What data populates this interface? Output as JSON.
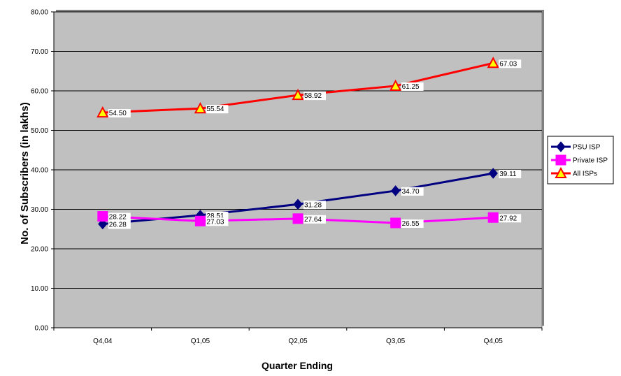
{
  "chart_data": {
    "type": "line",
    "title": "",
    "xlabel": "Quarter Ending",
    "ylabel": "No. of Subscribers  (in lakhs)",
    "categories": [
      "Q4,04",
      "Q1,05",
      "Q2,05",
      "Q3,05",
      "Q4,05"
    ],
    "ylim": [
      0,
      80
    ],
    "yticks": [
      "0.00",
      "10.00",
      "20.00",
      "30.00",
      "40.00",
      "50.00",
      "60.00",
      "70.00",
      "80.00"
    ],
    "grid": true,
    "legend_position": "right",
    "series": [
      {
        "name": "PSU ISP",
        "values": [
          26.28,
          28.51,
          31.28,
          34.7,
          39.11
        ],
        "labels": [
          "26.28",
          "28.51",
          "31.28",
          "34.70",
          "39.11"
        ],
        "color": "#000080",
        "marker": "diamond"
      },
      {
        "name": "Private ISP",
        "values": [
          28.22,
          27.03,
          27.64,
          26.55,
          27.92
        ],
        "labels": [
          "28.22",
          "27.03",
          "27.64",
          "26.55",
          "27.92"
        ],
        "color": "#ff00ff",
        "marker": "square"
      },
      {
        "name": "All ISPs",
        "values": [
          54.5,
          55.54,
          58.92,
          61.25,
          67.03
        ],
        "labels": [
          "54.50",
          "55.54",
          "58.92",
          "61.25",
          "67.03"
        ],
        "color": "#ff0000",
        "marker": "triangle"
      }
    ],
    "colors": {
      "plot_bg": "#c0c0c0",
      "grid": "#000000",
      "triangle_fill": "#ffff00"
    }
  }
}
